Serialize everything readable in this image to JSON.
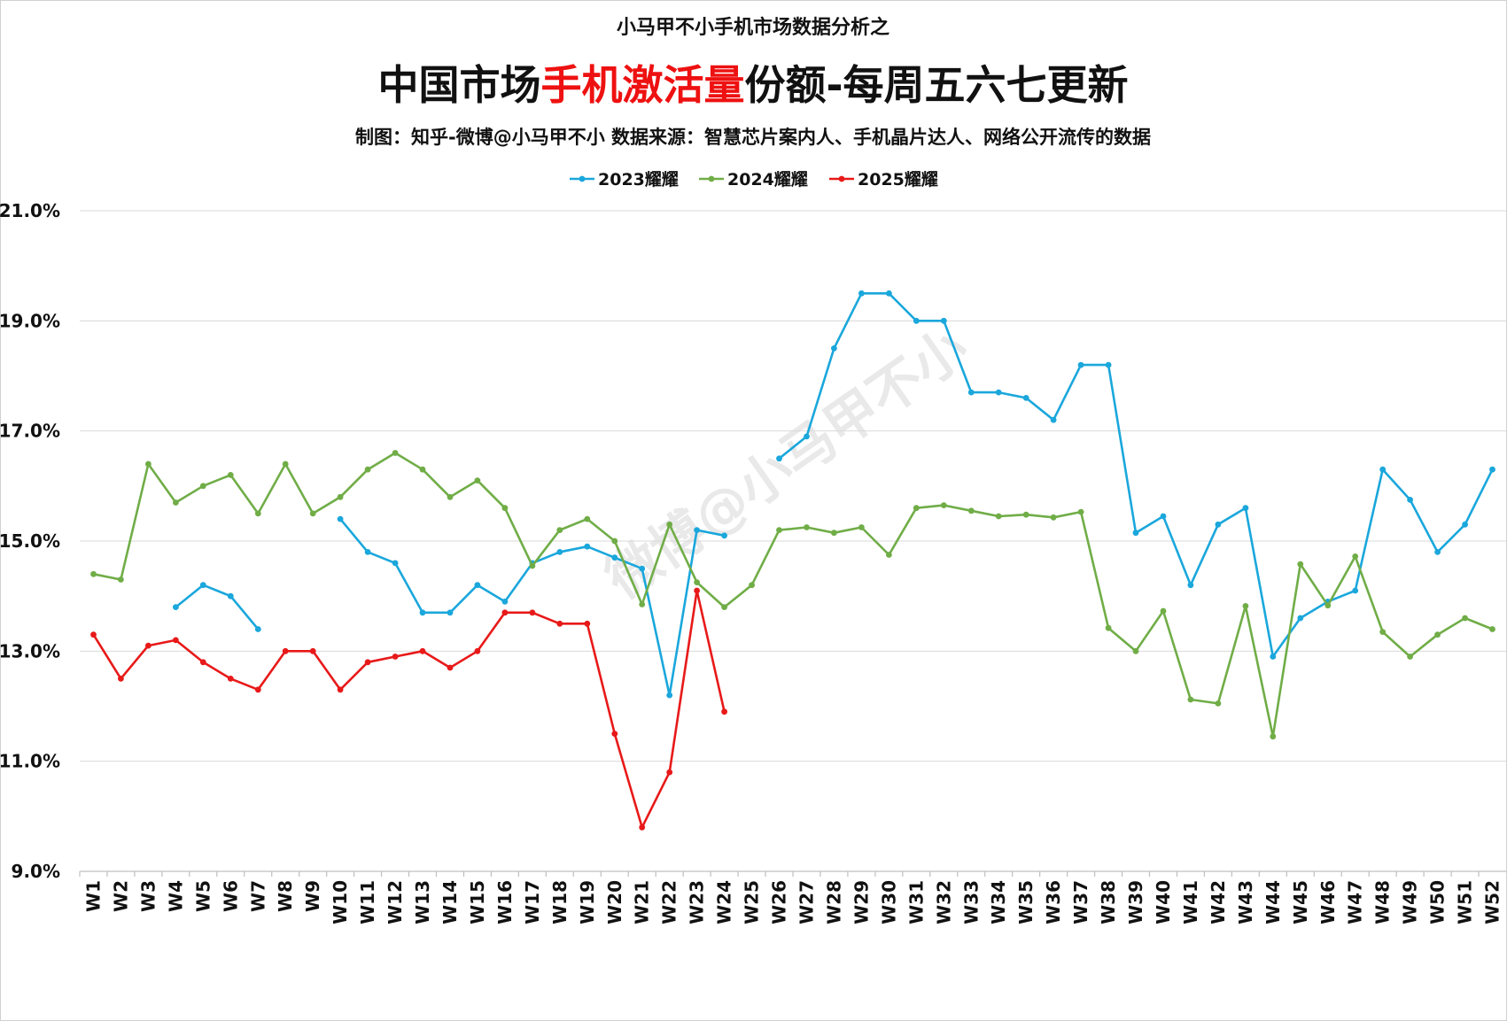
{
  "header": {
    "supertitle": "小马甲不小手机市场数据分析之",
    "title_part1": "中国市场",
    "title_part2": "手机激活量",
    "title_part3": "份额-每周五六七更新",
    "subtitle": "制图：知乎-微博@小马甲不小  数据来源：智慧芯片案内人、手机晶片达人、网络公开流传的数据"
  },
  "watermark": "微博@小马甲不小",
  "chart_data": {
    "type": "line",
    "title": "中国市场手机激活量份额-每周五六七更新",
    "xlabel": "",
    "ylabel": "",
    "ylim": [
      9.0,
      21.0
    ],
    "yticks": [
      "9.0%",
      "11.0%",
      "13.0%",
      "15.0%",
      "17.0%",
      "19.0%",
      "21.0%"
    ],
    "ytick_values": [
      9,
      11,
      13,
      15,
      17,
      19,
      21
    ],
    "grid": true,
    "legend_position": "top",
    "categories": [
      "W1",
      "W2",
      "W3",
      "W4",
      "W5",
      "W6",
      "W7",
      "W8",
      "W9",
      "W10",
      "W11",
      "W12",
      "W13",
      "W14",
      "W15",
      "W16",
      "W17",
      "W18",
      "W19",
      "W20",
      "W21",
      "W22",
      "W23",
      "W24",
      "W25",
      "W26",
      "W27",
      "W28",
      "W29",
      "W30",
      "W31",
      "W32",
      "W33",
      "W34",
      "W35",
      "W36",
      "W37",
      "W38",
      "W39",
      "W40",
      "W41",
      "W42",
      "W43",
      "W44",
      "W45",
      "W46",
      "W47",
      "W48",
      "W49",
      "W50",
      "W51",
      "W52"
    ],
    "series": [
      {
        "name": "2023耀耀",
        "color": "#1aa7dc",
        "values": [
          null,
          null,
          null,
          13.8,
          14.2,
          14.0,
          13.4,
          null,
          null,
          15.4,
          14.8,
          14.6,
          13.7,
          13.7,
          14.2,
          13.9,
          14.6,
          14.8,
          14.9,
          14.7,
          14.5,
          12.2,
          15.2,
          15.1,
          null,
          16.5,
          16.9,
          18.5,
          19.5,
          19.5,
          19.0,
          19.0,
          17.7,
          17.7,
          17.6,
          17.2,
          18.2,
          18.2,
          15.15,
          15.45,
          14.2,
          15.3,
          15.6,
          12.9,
          13.6,
          13.9,
          14.1,
          16.3,
          15.75,
          14.8,
          15.3,
          16.3
        ]
      },
      {
        "name": "2024耀耀",
        "color": "#70ad47",
        "values": [
          14.4,
          14.3,
          16.4,
          15.7,
          16.0,
          16.2,
          15.5,
          16.4,
          15.5,
          15.8,
          16.3,
          16.6,
          16.3,
          15.8,
          16.1,
          15.6,
          14.55,
          15.2,
          15.4,
          15.0,
          13.85,
          15.3,
          14.25,
          13.8,
          14.2,
          15.2,
          15.25,
          15.15,
          15.25,
          14.75,
          15.6,
          15.65,
          15.55,
          15.45,
          15.48,
          15.43,
          15.53,
          13.42,
          13.0,
          13.73,
          12.12,
          12.05,
          13.82,
          11.45,
          14.58,
          13.83,
          14.72,
          13.35,
          12.9,
          13.3,
          13.6,
          13.4
        ]
      },
      {
        "name": "2025耀耀",
        "color": "#e81919",
        "values": [
          13.3,
          12.5,
          13.1,
          13.2,
          12.8,
          12.5,
          12.3,
          13.0,
          13.0,
          12.3,
          12.8,
          12.9,
          13.0,
          12.7,
          13.0,
          13.7,
          13.7,
          13.5,
          13.5,
          11.5,
          9.8,
          10.8,
          14.1,
          11.9,
          null,
          null,
          null,
          null,
          null,
          null,
          null,
          null,
          null,
          null,
          null,
          null,
          null,
          null,
          null,
          null,
          null,
          null,
          null,
          null,
          null,
          null,
          null,
          null,
          null,
          null,
          null,
          null
        ]
      }
    ]
  }
}
